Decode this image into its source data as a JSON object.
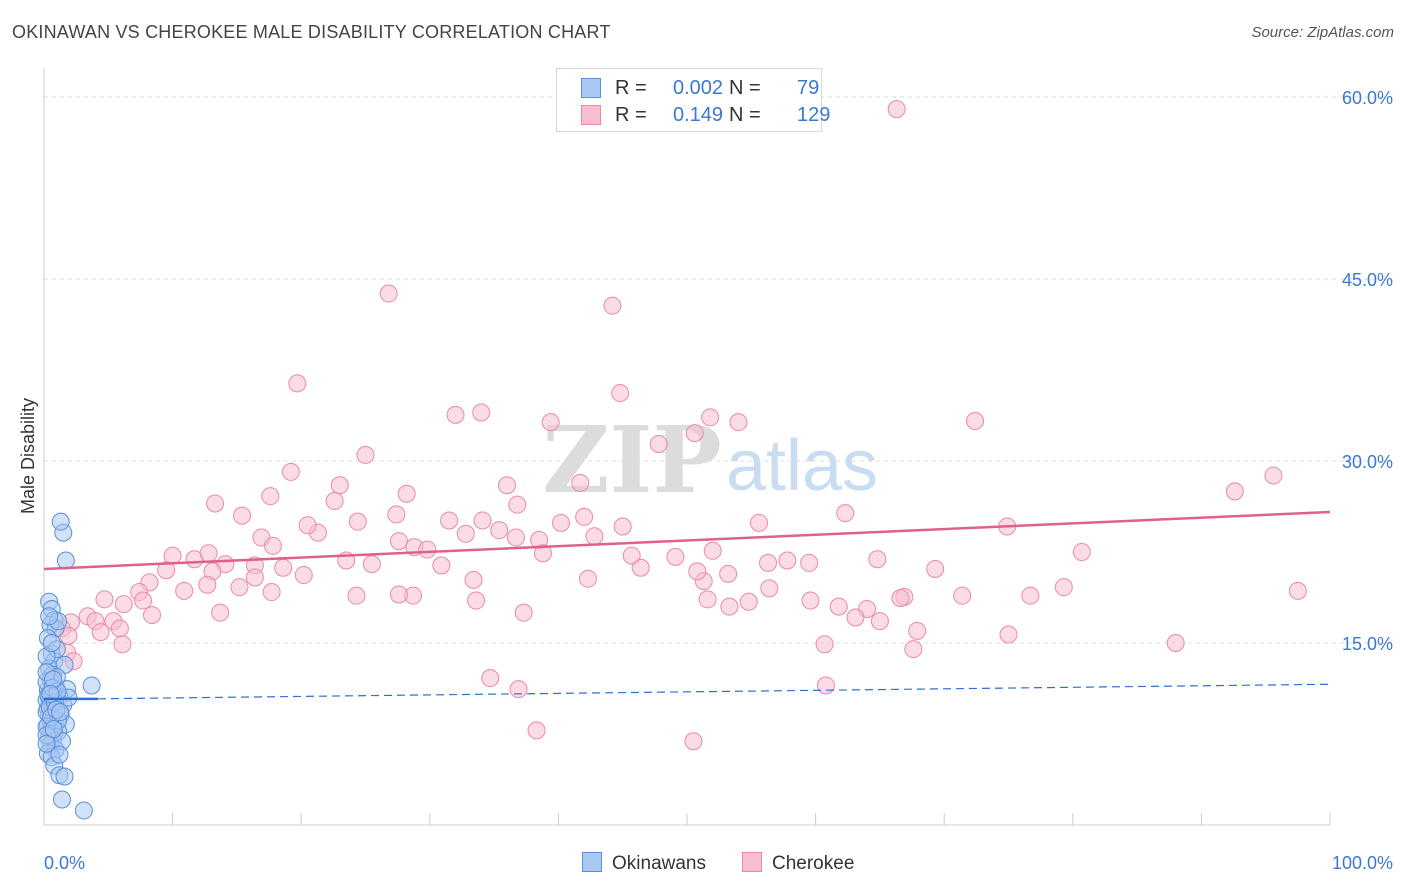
{
  "title": "OKINAWAN VS CHEROKEE MALE DISABILITY CORRELATION CHART",
  "source": "Source: ZipAtlas.com",
  "watermark": {
    "zip": "ZIP",
    "atlas": "atlas"
  },
  "legend": {
    "rows": [
      {
        "r_label": "R =",
        "r_value": "0.002",
        "n_label": "N =",
        "n_value": "79"
      },
      {
        "r_label": "R =",
        "r_value": "0.149",
        "n_label": "N =",
        "n_value": "129"
      }
    ]
  },
  "bottom_legend": {
    "okinawans": "Okinawans",
    "cherokee": "Cherokee"
  },
  "colors": {
    "okinawans_fill": "#a9c8f2",
    "okinawans_stroke": "#5b8fd8",
    "okinawans_line": "#2f6fd0",
    "cherokee_fill": "#f7bdd0",
    "cherokee_stroke": "#e98aa9",
    "cherokee_line": "#e0608c",
    "axis_label": "#3a78d4",
    "grid": "#dddddd"
  },
  "chart_data": {
    "type": "scatter",
    "title": "OKINAWAN VS CHEROKEE MALE DISABILITY CORRELATION CHART",
    "xlabel": "",
    "ylabel": "Male Disability",
    "xlim": [
      0,
      100
    ],
    "ylim": [
      0,
      60
    ],
    "x_tick_labels": [
      "0.0%",
      "100.0%"
    ],
    "y_ticks": [
      15,
      30,
      45,
      60
    ],
    "y_tick_labels": [
      "15.0%",
      "30.0%",
      "45.0%",
      "60.0%"
    ],
    "series": [
      {
        "name": "Okinawans",
        "R": 0.002,
        "N": 79,
        "trend": {
          "x": [
            0,
            4.2
          ],
          "y": [
            10.4,
            10.4
          ],
          "dashed_extension": {
            "x": [
              4.2,
              100
            ],
            "y": [
              10.4,
              11.6
            ]
          }
        },
        "points": [
          [
            0.4,
            18.4
          ],
          [
            0.6,
            17.8
          ],
          [
            0.8,
            16.9
          ],
          [
            0.5,
            16.5
          ],
          [
            0.9,
            16.2
          ],
          [
            0.3,
            15.4
          ],
          [
            0.6,
            14.1
          ],
          [
            0.8,
            13.5
          ],
          [
            0.4,
            12.9
          ],
          [
            0.7,
            12.4
          ],
          [
            0.5,
            11.9
          ],
          [
            0.9,
            11.5
          ],
          [
            0.3,
            11.1
          ],
          [
            0.6,
            10.9
          ],
          [
            0.8,
            10.6
          ],
          [
            0.4,
            10.4
          ],
          [
            0.7,
            10.2
          ],
          [
            0.5,
            10.0
          ],
          [
            0.9,
            9.8
          ],
          [
            0.3,
            9.6
          ],
          [
            0.6,
            9.4
          ],
          [
            0.8,
            9.2
          ],
          [
            0.4,
            9.0
          ],
          [
            0.7,
            8.8
          ],
          [
            0.5,
            8.6
          ],
          [
            0.9,
            8.4
          ],
          [
            0.3,
            8.2
          ],
          [
            0.6,
            8.0
          ],
          [
            0.8,
            7.6
          ],
          [
            0.4,
            7.3
          ],
          [
            0.7,
            7.0
          ],
          [
            0.5,
            6.6
          ],
          [
            0.9,
            6.2
          ],
          [
            0.3,
            5.9
          ],
          [
            0.6,
            5.6
          ],
          [
            0.8,
            4.9
          ],
          [
            1.2,
            4.1
          ],
          [
            1.4,
            2.1
          ],
          [
            1.7,
            21.8
          ],
          [
            1.5,
            24.1
          ],
          [
            1.3,
            25.0
          ],
          [
            1.1,
            16.8
          ],
          [
            1.0,
            14.5
          ],
          [
            1.6,
            13.2
          ],
          [
            1.8,
            11.2
          ],
          [
            1.2,
            10.6
          ],
          [
            1.5,
            9.9
          ],
          [
            1.3,
            9.1
          ],
          [
            1.7,
            8.3
          ],
          [
            1.1,
            7.7
          ],
          [
            1.4,
            6.9
          ],
          [
            1.2,
            5.8
          ],
          [
            1.6,
            4.0
          ],
          [
            1.0,
            12.2
          ],
          [
            1.9,
            10.5
          ],
          [
            1.1,
            8.6
          ],
          [
            0.2,
            10.3
          ],
          [
            0.2,
            9.3
          ],
          [
            0.2,
            8.1
          ],
          [
            0.2,
            11.8
          ],
          [
            0.2,
            7.4
          ],
          [
            0.2,
            13.9
          ],
          [
            0.2,
            12.6
          ],
          [
            0.2,
            6.7
          ],
          [
            0.35,
            10.7
          ],
          [
            0.45,
            9.7
          ],
          [
            0.55,
            8.9
          ],
          [
            0.65,
            11.3
          ],
          [
            0.75,
            7.9
          ],
          [
            0.85,
            10.1
          ],
          [
            0.95,
            9.5
          ],
          [
            1.05,
            11.0
          ],
          [
            1.25,
            9.3
          ],
          [
            3.7,
            11.5
          ],
          [
            3.1,
            1.2
          ],
          [
            0.4,
            17.2
          ],
          [
            0.6,
            15.0
          ],
          [
            0.7,
            12.0
          ],
          [
            0.5,
            10.8
          ]
        ]
      },
      {
        "name": "Cherokee",
        "R": 0.149,
        "N": 129,
        "trend": {
          "x": [
            0,
            100
          ],
          "y": [
            21.1,
            25.8
          ]
        },
        "points": [
          [
            66.3,
            59.0
          ],
          [
            26.8,
            43.8
          ],
          [
            44.2,
            42.8
          ],
          [
            19.7,
            36.4
          ],
          [
            44.8,
            35.6
          ],
          [
            34.0,
            34.0
          ],
          [
            32.0,
            33.8
          ],
          [
            51.8,
            33.6
          ],
          [
            54.0,
            33.2
          ],
          [
            39.4,
            33.2
          ],
          [
            72.4,
            33.3
          ],
          [
            50.6,
            32.3
          ],
          [
            47.8,
            31.4
          ],
          [
            25.0,
            30.5
          ],
          [
            19.2,
            29.1
          ],
          [
            95.6,
            28.8
          ],
          [
            23.0,
            28.0
          ],
          [
            41.7,
            28.2
          ],
          [
            36.0,
            28.0
          ],
          [
            92.6,
            27.5
          ],
          [
            28.2,
            27.3
          ],
          [
            22.6,
            26.7
          ],
          [
            13.3,
            26.5
          ],
          [
            36.8,
            26.4
          ],
          [
            62.3,
            25.7
          ],
          [
            15.4,
            25.5
          ],
          [
            27.4,
            25.6
          ],
          [
            31.5,
            25.1
          ],
          [
            24.4,
            25.0
          ],
          [
            42.0,
            25.4
          ],
          [
            40.2,
            24.9
          ],
          [
            34.1,
            25.1
          ],
          [
            74.9,
            24.6
          ],
          [
            21.3,
            24.1
          ],
          [
            32.8,
            24.0
          ],
          [
            16.9,
            23.7
          ],
          [
            27.6,
            23.4
          ],
          [
            36.7,
            23.7
          ],
          [
            38.5,
            23.5
          ],
          [
            42.8,
            23.8
          ],
          [
            28.8,
            22.9
          ],
          [
            29.8,
            22.7
          ],
          [
            17.8,
            23.0
          ],
          [
            52.0,
            22.6
          ],
          [
            38.8,
            22.4
          ],
          [
            10.0,
            22.2
          ],
          [
            11.7,
            21.9
          ],
          [
            14.1,
            21.5
          ],
          [
            49.1,
            22.1
          ],
          [
            64.8,
            21.9
          ],
          [
            80.7,
            22.5
          ],
          [
            23.5,
            21.8
          ],
          [
            56.3,
            21.6
          ],
          [
            59.5,
            21.6
          ],
          [
            16.4,
            21.4
          ],
          [
            18.6,
            21.2
          ],
          [
            30.9,
            21.4
          ],
          [
            25.5,
            21.5
          ],
          [
            9.5,
            21.0
          ],
          [
            13.1,
            20.9
          ],
          [
            46.4,
            21.2
          ],
          [
            53.2,
            20.7
          ],
          [
            69.3,
            21.1
          ],
          [
            16.4,
            20.4
          ],
          [
            20.2,
            20.6
          ],
          [
            33.4,
            20.2
          ],
          [
            42.3,
            20.3
          ],
          [
            51.3,
            20.1
          ],
          [
            8.2,
            20.0
          ],
          [
            12.7,
            19.8
          ],
          [
            10.9,
            19.3
          ],
          [
            15.2,
            19.6
          ],
          [
            56.4,
            19.5
          ],
          [
            17.7,
            19.2
          ],
          [
            7.4,
            19.2
          ],
          [
            7.7,
            18.5
          ],
          [
            4.7,
            18.6
          ],
          [
            6.2,
            18.2
          ],
          [
            24.3,
            18.9
          ],
          [
            28.7,
            18.9
          ],
          [
            33.6,
            18.5
          ],
          [
            51.6,
            18.6
          ],
          [
            54.8,
            18.4
          ],
          [
            59.6,
            18.5
          ],
          [
            66.9,
            18.8
          ],
          [
            76.7,
            18.9
          ],
          [
            79.3,
            19.6
          ],
          [
            97.5,
            19.3
          ],
          [
            8.4,
            17.3
          ],
          [
            3.4,
            17.2
          ],
          [
            13.7,
            17.5
          ],
          [
            4.0,
            16.8
          ],
          [
            2.1,
            16.7
          ],
          [
            1.4,
            16.2
          ],
          [
            5.4,
            16.8
          ],
          [
            37.3,
            17.5
          ],
          [
            53.3,
            18.0
          ],
          [
            64.0,
            17.8
          ],
          [
            66.6,
            18.7
          ],
          [
            63.1,
            17.1
          ],
          [
            65.0,
            16.8
          ],
          [
            5.9,
            16.2
          ],
          [
            1.9,
            15.6
          ],
          [
            4.4,
            15.9
          ],
          [
            6.1,
            14.9
          ],
          [
            67.9,
            16.0
          ],
          [
            75.0,
            15.7
          ],
          [
            60.7,
            14.9
          ],
          [
            67.6,
            14.5
          ],
          [
            88.0,
            15.0
          ],
          [
            1.8,
            14.2
          ],
          [
            2.3,
            13.5
          ],
          [
            34.7,
            12.1
          ],
          [
            60.8,
            11.5
          ],
          [
            36.9,
            11.2
          ],
          [
            38.3,
            7.8
          ],
          [
            50.5,
            6.9
          ],
          [
            12.8,
            22.4
          ],
          [
            27.6,
            19.0
          ],
          [
            45.7,
            22.2
          ],
          [
            50.8,
            20.9
          ],
          [
            71.4,
            18.9
          ],
          [
            57.8,
            21.8
          ],
          [
            61.8,
            18.0
          ],
          [
            20.5,
            24.7
          ],
          [
            17.6,
            27.1
          ],
          [
            45.0,
            24.6
          ],
          [
            55.6,
            24.9
          ],
          [
            35.4,
            24.3
          ]
        ]
      }
    ]
  }
}
